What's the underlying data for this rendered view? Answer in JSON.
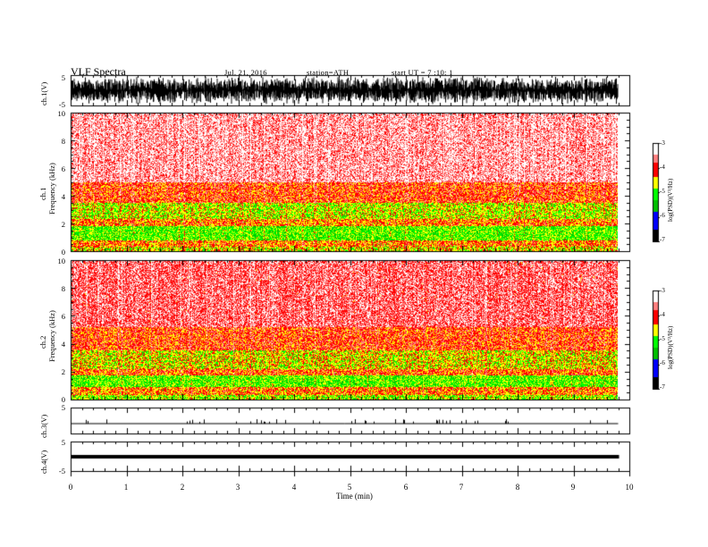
{
  "header": {
    "title": "VLF  Spectra",
    "date": "Jul.  21, 2016",
    "station": "station=ATH",
    "start": "start  UT  =   7  :10: 1"
  },
  "colors": {
    "spectrogram_palette": [
      "#ffffff",
      "#ff8080",
      "#ff0000",
      "#ffff00",
      "#00ff00",
      "#00c000",
      "#0000ff",
      "#000000"
    ]
  },
  "chart_data": [
    {
      "type": "line",
      "panel": "ch.1",
      "ylabel": "ch.1(V)",
      "yticks": [
        "5",
        "-5"
      ],
      "ylim": [
        -5,
        5
      ],
      "description_of_trace": "dense broadband noise",
      "x_unit": "min",
      "xlim": [
        0,
        9.8
      ]
    },
    {
      "type": "heatmap",
      "panel": "ch.1 spectrogram",
      "ylabel": "Frequency (kHz)",
      "ylabel_channel": "ch.1",
      "yticks": [
        "0",
        "2",
        "4",
        "6",
        "8",
        "10"
      ],
      "ylim": [
        0,
        10
      ],
      "xlim": [
        0,
        9.8
      ],
      "bands_khz": [
        {
          "from": 0,
          "to": 0.3,
          "level": -4.6
        },
        {
          "from": 0.3,
          "to": 0.8,
          "level": -4.3
        },
        {
          "from": 0.8,
          "to": 1.8,
          "level": -5.0
        },
        {
          "from": 1.8,
          "to": 2.3,
          "level": -4.3
        },
        {
          "from": 2.3,
          "to": 3.5,
          "level": -4.7
        },
        {
          "from": 3.5,
          "to": 5.0,
          "level": -4.1
        },
        {
          "from": 5.0,
          "to": 10.0,
          "level": -3.5
        }
      ],
      "colorbar": {
        "label": "log(PSD)(V²/Hz)",
        "ticks": [
          "-3",
          "-4",
          "-5",
          "-6",
          "-7"
        ],
        "range": [
          -7,
          -3
        ]
      }
    },
    {
      "type": "heatmap",
      "panel": "ch.2 spectrogram",
      "ylabel": "Frequency (kHz)",
      "ylabel_channel": "ch.2",
      "yticks": [
        "0",
        "2",
        "4",
        "6",
        "8",
        "10"
      ],
      "ylim": [
        0,
        10
      ],
      "xlim": [
        0,
        9.8
      ],
      "bands_khz": [
        {
          "from": 0,
          "to": 0.3,
          "level": -4.8
        },
        {
          "from": 0.3,
          "to": 0.9,
          "level": -4.3
        },
        {
          "from": 0.9,
          "to": 1.7,
          "level": -5.0
        },
        {
          "from": 1.7,
          "to": 2.2,
          "level": -4.2
        },
        {
          "from": 2.2,
          "to": 3.5,
          "level": -4.6
        },
        {
          "from": 3.5,
          "to": 5.2,
          "level": -4.1
        },
        {
          "from": 5.2,
          "to": 10.0,
          "level": -3.7
        }
      ],
      "colorbar": {
        "label": "log(PSD)(V²/Hz)",
        "ticks": [
          "-3",
          "-4",
          "-5",
          "-6",
          "-7"
        ],
        "range": [
          -7,
          -3
        ]
      }
    },
    {
      "type": "line",
      "panel": "ch.3",
      "ylabel": "ch.3(V)",
      "yticks": [
        "5"
      ],
      "ylim": [
        -5,
        5
      ],
      "description_of_trace": "near-zero, sparse small spikes",
      "xlim": [
        0,
        9.8
      ]
    },
    {
      "type": "line",
      "panel": "ch.4",
      "ylabel": "ch.4(V)",
      "yticks": [
        "5",
        "-5"
      ],
      "ylim": [
        -5,
        5
      ],
      "description_of_trace": "flat constant offset",
      "value_v": 0,
      "xlim": [
        0,
        9.8
      ]
    }
  ],
  "xaxis": {
    "label": "Time  (min)",
    "ticks": [
      "0",
      "1",
      "2",
      "3",
      "4",
      "5",
      "6",
      "7",
      "8",
      "9",
      "10"
    ],
    "range": [
      0,
      10
    ]
  }
}
